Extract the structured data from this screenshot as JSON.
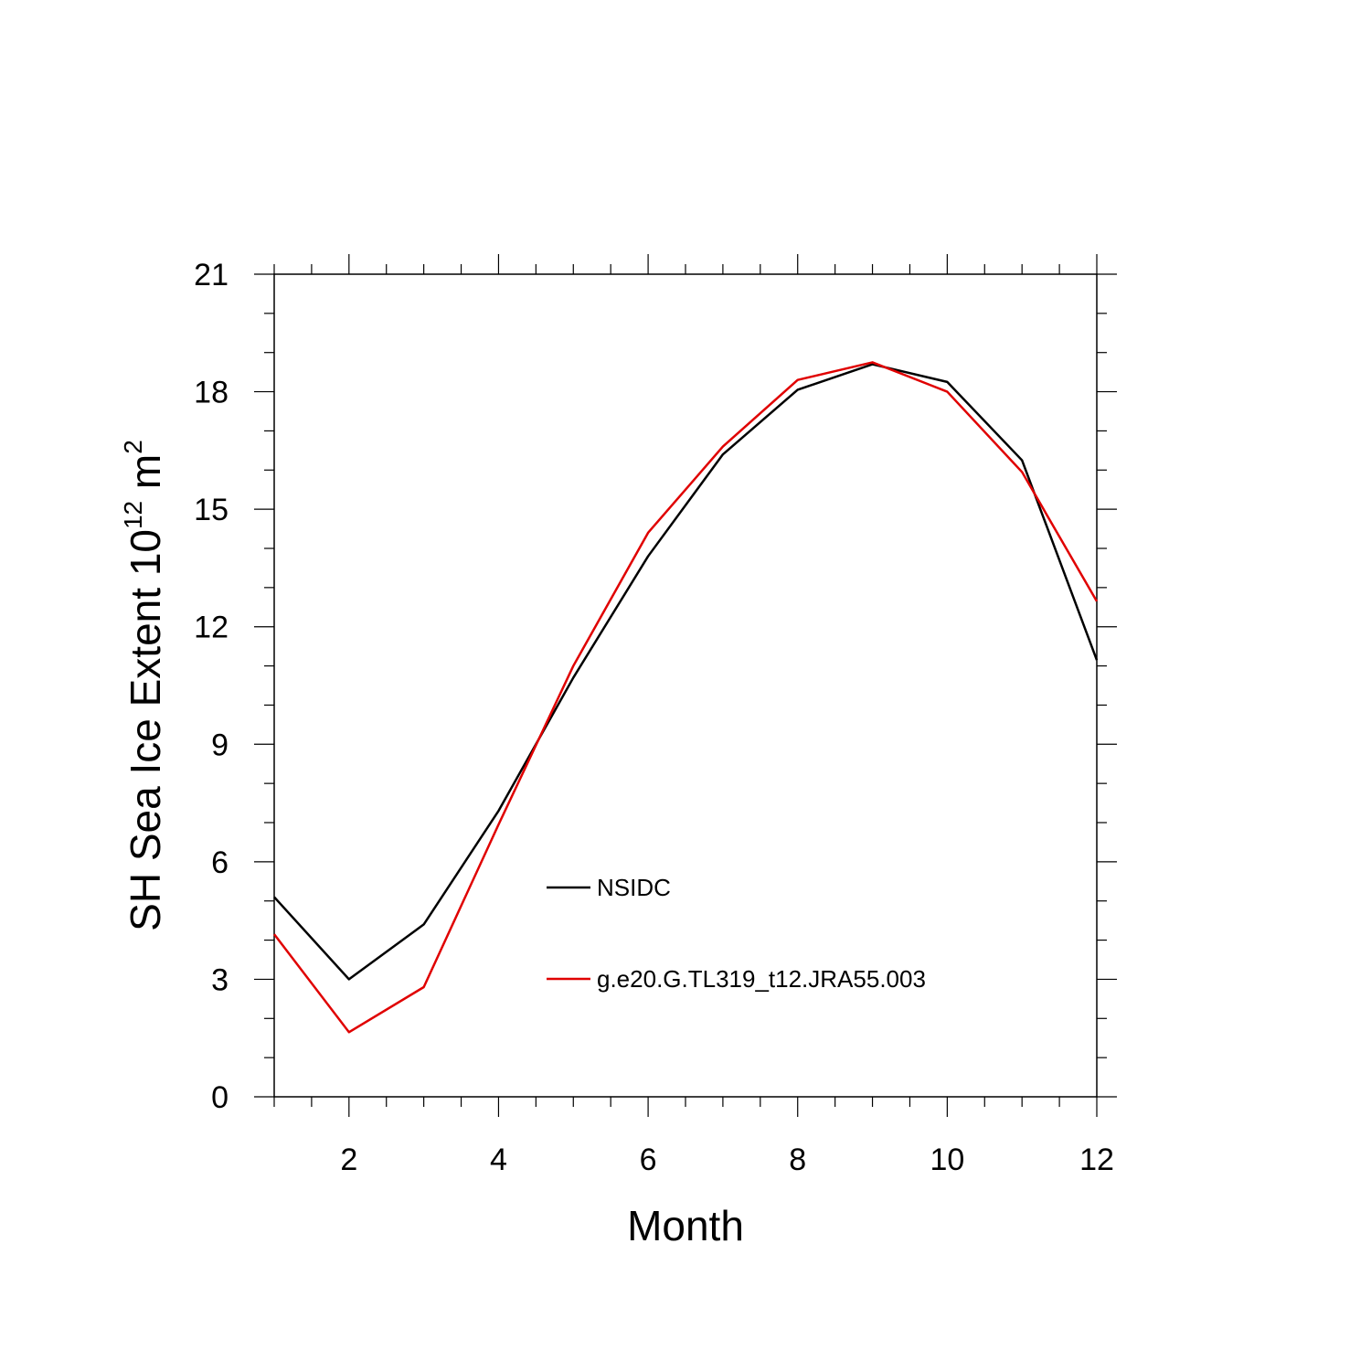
{
  "chart_data": {
    "type": "line",
    "xlabel": "Month",
    "ylabel_main": "SH Sea Ice Extent 10",
    "ylabel_exp": "12",
    "ylabel_unit": " m",
    "ylabel_unit_exp": "2",
    "xlim": [
      1,
      12
    ],
    "ylim": [
      0,
      21
    ],
    "xticks": [
      "2",
      "4",
      "6",
      "8",
      "10",
      "12"
    ],
    "yticks": [
      "0",
      "3",
      "6",
      "9",
      "12",
      "15",
      "18",
      "21"
    ],
    "x": [
      1,
      2,
      3,
      4,
      5,
      6,
      7,
      8,
      9,
      10,
      11,
      12
    ],
    "series": [
      {
        "name": "NSIDC",
        "color": "#000000",
        "values": [
          5.1,
          3.0,
          4.4,
          7.3,
          10.7,
          13.8,
          16.4,
          18.05,
          18.7,
          18.25,
          16.25,
          11.15
        ]
      },
      {
        "name": "g.e20.G.TL319_t12.JRA55.003",
        "color": "#e00000",
        "values": [
          4.15,
          1.65,
          2.8,
          6.95,
          11.0,
          14.4,
          16.6,
          18.3,
          18.75,
          18.0,
          15.95,
          12.65
        ]
      }
    ],
    "legend": {
      "placement": "center"
    },
    "grid": false
  }
}
